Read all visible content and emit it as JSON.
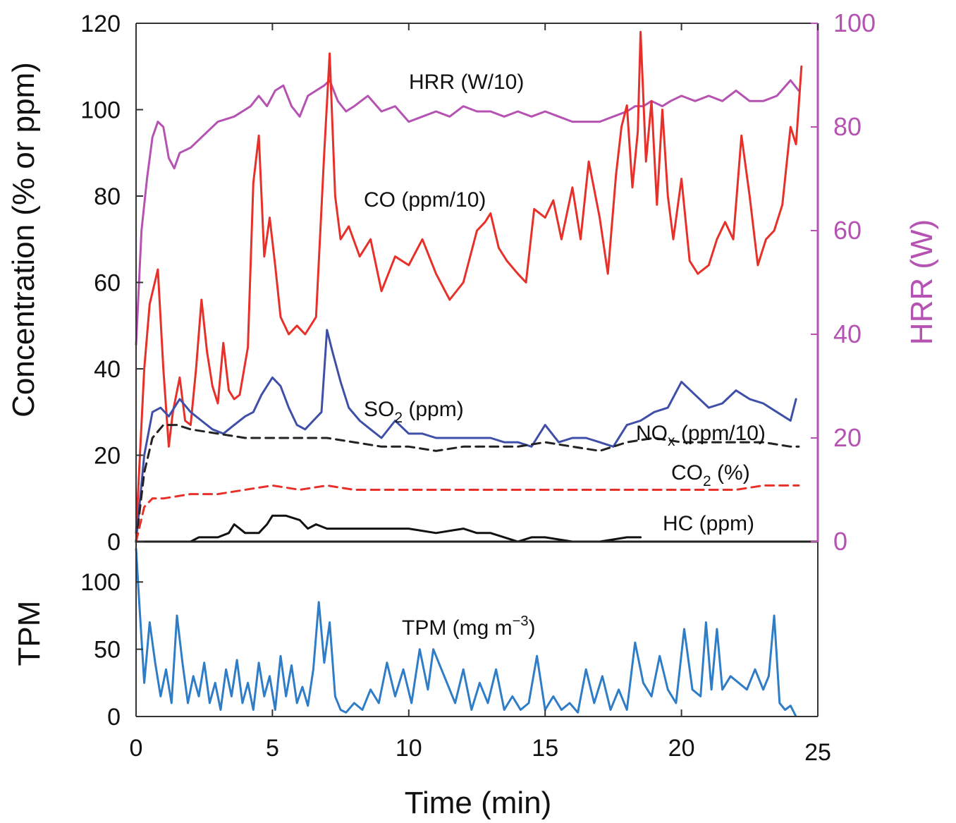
{
  "chart_data": [
    {
      "type": "line",
      "panel": "top",
      "xlabel": "Time (min)",
      "ylabel": "Concentration (% or ppm)",
      "y2label": "HRR (W)",
      "xlim": [
        0,
        25
      ],
      "ylim": [
        0,
        120
      ],
      "y2lim": [
        0,
        100
      ],
      "x_ticks": [
        "0",
        "5",
        "10",
        "15",
        "20",
        "25"
      ],
      "y_ticks": [
        "0",
        "20",
        "40",
        "60",
        "80",
        "100",
        "120"
      ],
      "y2_ticks": [
        "0",
        "20",
        "40",
        "60",
        "80",
        "100"
      ],
      "colors": {
        "hrr": "#b552b2",
        "co": "#e8302a",
        "so2": "#3f4fa8",
        "nox": "#222222",
        "co2": "#e8302a",
        "hc": "#111111",
        "right_axis": "#b552b2"
      },
      "series": [
        {
          "key": "hrr",
          "axis": "right",
          "style": "solid",
          "x": [
            0,
            0.2,
            0.4,
            0.6,
            0.8,
            1.0,
            1.2,
            1.4,
            1.6,
            2.0,
            2.4,
            3.0,
            3.6,
            4.2,
            4.5,
            4.8,
            5.1,
            5.4,
            5.7,
            6.0,
            6.3,
            6.6,
            6.9,
            7.1,
            7.4,
            7.7,
            8.0,
            8.5,
            9.0,
            9.5,
            10.0,
            10.5,
            11.0,
            11.5,
            12.0,
            12.5,
            13.0,
            13.5,
            14.0,
            14.5,
            15.0,
            15.5,
            16.0,
            16.5,
            17.0,
            17.5,
            18.0,
            18.3,
            18.6,
            18.9,
            19.3,
            19.6,
            20.0,
            20.5,
            21.0,
            21.5,
            22.0,
            22.5,
            23.0,
            23.5,
            24.0,
            24.3
          ],
          "values": [
            38,
            60,
            70,
            78,
            81,
            80,
            74,
            72,
            75,
            76,
            78,
            81,
            82,
            84,
            86,
            84,
            87,
            88,
            84,
            82,
            86,
            87,
            88,
            89,
            85,
            83,
            84,
            86,
            83,
            84,
            81,
            82,
            83,
            82,
            84,
            83,
            83,
            82,
            83,
            82,
            83,
            82,
            81,
            81,
            81,
            82,
            83,
            84,
            84,
            85,
            84,
            85,
            86,
            85,
            86,
            85,
            87,
            85,
            85,
            86,
            89,
            87
          ]
        },
        {
          "key": "co",
          "axis": "left",
          "style": "solid",
          "x": [
            0,
            0.3,
            0.5,
            0.8,
            1.0,
            1.2,
            1.35,
            1.6,
            1.8,
            2.0,
            2.2,
            2.4,
            2.6,
            2.8,
            3.0,
            3.2,
            3.4,
            3.6,
            3.8,
            4.1,
            4.3,
            4.5,
            4.7,
            4.9,
            5.1,
            5.3,
            5.6,
            5.9,
            6.2,
            6.6,
            6.9,
            7.1,
            7.3,
            7.5,
            7.8,
            8.2,
            8.6,
            9.0,
            9.5,
            10.0,
            10.5,
            11.0,
            11.5,
            12.0,
            12.5,
            12.8,
            13.0,
            13.3,
            13.6,
            14.0,
            14.3,
            14.6,
            15.0,
            15.3,
            15.6,
            16.0,
            16.3,
            16.6,
            17.0,
            17.3,
            17.6,
            17.8,
            18.0,
            18.2,
            18.4,
            18.5,
            18.7,
            18.9,
            19.1,
            19.3,
            19.5,
            19.7,
            20.0,
            20.3,
            20.6,
            21.0,
            21.3,
            21.6,
            21.9,
            22.2,
            22.5,
            22.8,
            23.1,
            23.4,
            23.7,
            24.0,
            24.2,
            24.4
          ],
          "values": [
            2,
            40,
            55,
            63,
            40,
            22,
            30,
            38,
            28,
            27,
            40,
            56,
            44,
            36,
            32,
            46,
            35,
            33,
            34,
            45,
            83,
            94,
            66,
            75,
            64,
            52,
            48,
            50,
            48,
            52,
            90,
            113,
            80,
            70,
            73,
            66,
            70,
            58,
            66,
            64,
            70,
            62,
            56,
            60,
            72,
            74,
            76,
            68,
            65,
            62,
            60,
            77,
            75,
            79,
            70,
            82,
            70,
            88,
            75,
            62,
            85,
            96,
            101,
            82,
            95,
            118,
            88,
            102,
            78,
            100,
            80,
            70,
            84,
            65,
            62,
            64,
            70,
            74,
            70,
            94,
            80,
            64,
            70,
            72,
            78,
            96,
            92,
            110
          ]
        },
        {
          "key": "so2",
          "axis": "left",
          "style": "solid",
          "x": [
            0,
            0.3,
            0.6,
            0.9,
            1.2,
            1.6,
            2.0,
            2.4,
            2.8,
            3.2,
            3.6,
            4.0,
            4.3,
            4.6,
            5.0,
            5.3,
            5.6,
            5.9,
            6.2,
            6.5,
            6.8,
            7.0,
            7.2,
            7.5,
            7.8,
            8.2,
            8.6,
            9.0,
            9.5,
            10.0,
            10.5,
            11.0,
            11.5,
            12.0,
            12.5,
            13.0,
            13.5,
            14.0,
            14.5,
            15.0,
            15.5,
            16.0,
            16.5,
            17.0,
            17.5,
            18.0,
            18.5,
            19.0,
            19.5,
            20.0,
            20.5,
            21.0,
            21.5,
            22.0,
            22.5,
            23.0,
            23.5,
            24.0,
            24.2
          ],
          "values": [
            0,
            20,
            30,
            31,
            29,
            33,
            30,
            28,
            26,
            25,
            27,
            29,
            30,
            34,
            38,
            36,
            31,
            27,
            26,
            28,
            30,
            49,
            44,
            37,
            31,
            28,
            26,
            24,
            28,
            25,
            25,
            24,
            24,
            24,
            24,
            24,
            23,
            23,
            22,
            27,
            23,
            24,
            24,
            23,
            22,
            27,
            28,
            30,
            31,
            37,
            34,
            31,
            32,
            35,
            33,
            32,
            30,
            28,
            33
          ]
        },
        {
          "key": "nox",
          "axis": "left",
          "style": "dashed",
          "x": [
            0,
            0.3,
            0.6,
            1.0,
            1.5,
            2.0,
            3.0,
            4.0,
            5.0,
            6.0,
            7.0,
            8.0,
            9.0,
            10.0,
            11.0,
            12.0,
            13.0,
            14.0,
            15.0,
            16.0,
            17.0,
            18.0,
            19.0,
            20.0,
            21.0,
            22.0,
            23.0,
            24.0,
            24.3
          ],
          "values": [
            0,
            16,
            24,
            27,
            27,
            26,
            25,
            24,
            24,
            24,
            24,
            23,
            22,
            22,
            21,
            22,
            22,
            22,
            23,
            22,
            21,
            23,
            24,
            23,
            23,
            23,
            23,
            22,
            22
          ]
        },
        {
          "key": "co2",
          "axis": "left",
          "style": "dashed",
          "x": [
            0,
            0.3,
            0.6,
            1.0,
            2.0,
            3.0,
            4.0,
            5.0,
            6.0,
            7.0,
            8.0,
            9.0,
            10.0,
            11.0,
            12.0,
            13.0,
            14.0,
            15.0,
            16.0,
            17.0,
            18.0,
            19.0,
            20.0,
            21.0,
            22.0,
            23.0,
            24.0,
            24.3
          ],
          "values": [
            0,
            8,
            10,
            10,
            11,
            11,
            12,
            13,
            12,
            13,
            12,
            12,
            12,
            12,
            12,
            12,
            12,
            12,
            12,
            12,
            12,
            12,
            12,
            12,
            12,
            13,
            13,
            13
          ]
        },
        {
          "key": "hc",
          "axis": "left",
          "style": "solid",
          "x": [
            0,
            1.0,
            2.0,
            2.3,
            3.0,
            3.4,
            3.6,
            3.8,
            4.0,
            4.5,
            4.8,
            5.0,
            5.5,
            6.0,
            6.3,
            6.6,
            7.0,
            7.5,
            8.0,
            9.0,
            10.0,
            11.0,
            12.0,
            12.5,
            13.0,
            13.5,
            14.0,
            14.5,
            15.0,
            16.0,
            17.0,
            18.0,
            18.5
          ],
          "values": [
            0,
            0,
            0,
            1,
            1,
            2,
            4,
            3,
            2,
            2,
            4,
            6,
            6,
            5,
            3,
            4,
            3,
            3,
            3,
            3,
            3,
            2,
            3,
            2,
            2,
            1,
            0,
            1,
            1,
            0,
            0,
            1,
            1
          ]
        }
      ],
      "annotations": {
        "hrr": "HRR (W/10)",
        "co": "CO (ppm/10)",
        "so2_main": "SO",
        "so2_sub": "2",
        "so2_unit": " (ppm)",
        "nox_main": "NO",
        "nox_sub": "x",
        "nox_unit": " (ppm/10)",
        "co2_main": "CO",
        "co2_sub": "2",
        "co2_unit": " (%)",
        "hc": "HC (ppm)"
      }
    },
    {
      "type": "line",
      "panel": "bottom",
      "ylabel": "TPM",
      "xlim": [
        0,
        25
      ],
      "ylim": [
        0,
        130
      ],
      "y_ticks": [
        "0",
        "50",
        "100"
      ],
      "colors": {
        "tpm": "#2f7cc7"
      },
      "series": [
        {
          "key": "tpm",
          "x": [
            0,
            0.1,
            0.3,
            0.5,
            0.7,
            0.9,
            1.1,
            1.3,
            1.5,
            1.7,
            1.9,
            2.1,
            2.3,
            2.5,
            2.7,
            2.9,
            3.1,
            3.3,
            3.5,
            3.7,
            3.9,
            4.1,
            4.3,
            4.5,
            4.7,
            4.9,
            5.1,
            5.3,
            5.5,
            5.7,
            5.9,
            6.1,
            6.3,
            6.5,
            6.7,
            6.9,
            7.1,
            7.3,
            7.5,
            7.7,
            8.0,
            8.3,
            8.6,
            8.9,
            9.2,
            9.5,
            9.8,
            10.1,
            10.4,
            10.7,
            10.9,
            11.1,
            11.4,
            11.7,
            12.0,
            12.3,
            12.6,
            12.9,
            13.2,
            13.5,
            13.8,
            14.1,
            14.4,
            14.7,
            15.0,
            15.3,
            15.6,
            15.9,
            16.2,
            16.5,
            16.8,
            17.1,
            17.4,
            17.7,
            18.0,
            18.3,
            18.6,
            18.9,
            19.2,
            19.5,
            19.8,
            20.1,
            20.4,
            20.7,
            20.9,
            21.1,
            21.3,
            21.5,
            21.8,
            22.1,
            22.4,
            22.7,
            23.0,
            23.2,
            23.4,
            23.6,
            23.8,
            24.0,
            24.2
          ],
          "values": [
            125,
            90,
            25,
            70,
            40,
            15,
            35,
            10,
            75,
            40,
            10,
            30,
            15,
            40,
            10,
            25,
            5,
            35,
            15,
            42,
            10,
            25,
            5,
            40,
            15,
            30,
            5,
            45,
            15,
            38,
            10,
            22,
            8,
            35,
            85,
            40,
            70,
            15,
            5,
            3,
            10,
            5,
            20,
            10,
            40,
            15,
            35,
            10,
            50,
            20,
            50,
            40,
            25,
            10,
            35,
            5,
            25,
            10,
            35,
            5,
            15,
            5,
            10,
            45,
            5,
            15,
            5,
            10,
            3,
            35,
            10,
            30,
            5,
            20,
            5,
            55,
            25,
            15,
            45,
            20,
            10,
            65,
            20,
            15,
            70,
            20,
            65,
            20,
            30,
            25,
            20,
            35,
            20,
            30,
            75,
            10,
            5,
            8,
            0
          ]
        }
      ],
      "annotations": {
        "tpm_main": "TPM (mg m",
        "tpm_sup": "−3",
        "tpm_close": ")"
      }
    }
  ]
}
